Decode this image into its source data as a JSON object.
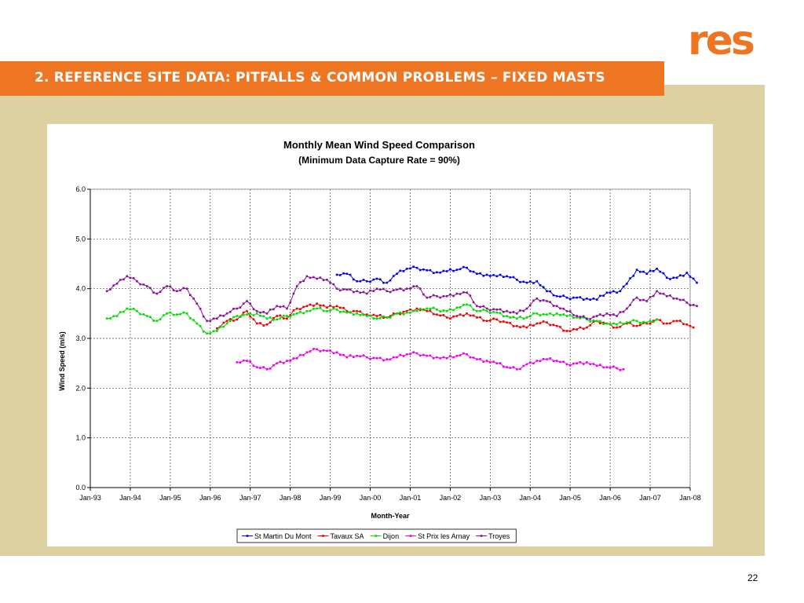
{
  "logo": {
    "text": "res",
    "color": "#ee7623"
  },
  "header": {
    "title": "2.   REFERENCE SITE DATA: PITFALLS & COMMON PROBLEMS – FIXED MASTS",
    "accent": "#ee7623"
  },
  "page": {
    "number": "22",
    "background": "#ddd0a1"
  },
  "chart_data": {
    "type": "line",
    "title": "Monthly Mean Wind Speed Comparison",
    "subtitle": "(Minimum Data Capture Rate = 90%)",
    "xlabel": "Month-Year",
    "ylabel": "Wind Speed (m/s)",
    "ylim": [
      0,
      6
    ],
    "yticks": [
      "0.0",
      "1.0",
      "2.0",
      "3.0",
      "4.0",
      "5.0",
      "6.0"
    ],
    "xticks": [
      "Jan-93",
      "Jan-94",
      "Jan-95",
      "Jan-96",
      "Jan-97",
      "Jan-98",
      "Jan-99",
      "Jan-00",
      "Jan-01",
      "Jan-02",
      "Jan-03",
      "Jan-04",
      "Jan-05",
      "Jan-06",
      "Jan-07",
      "Jan-08"
    ],
    "grid": true,
    "legend_position": "bottom",
    "series": [
      {
        "name": "St Martin Du Mont",
        "color": "#0000ee",
        "points": [
          [
            "1999-03",
            4.28
          ],
          [
            "1999-06",
            4.3
          ],
          [
            "1999-09",
            4.15
          ],
          [
            "1999-12",
            4.15
          ],
          [
            "2000-03",
            4.2
          ],
          [
            "2000-06",
            4.12
          ],
          [
            "2000-09",
            4.3
          ],
          [
            "2000-12",
            4.4
          ],
          [
            "2001-03",
            4.42
          ],
          [
            "2001-06",
            4.37
          ],
          [
            "2001-09",
            4.33
          ],
          [
            "2001-12",
            4.35
          ],
          [
            "2002-03",
            4.38
          ],
          [
            "2002-06",
            4.42
          ],
          [
            "2002-09",
            4.3
          ],
          [
            "2002-12",
            4.28
          ],
          [
            "2003-03",
            4.25
          ],
          [
            "2003-06",
            4.25
          ],
          [
            "2003-09",
            4.18
          ],
          [
            "2003-12",
            4.12
          ],
          [
            "2004-03",
            4.15
          ],
          [
            "2004-06",
            3.95
          ],
          [
            "2004-09",
            3.85
          ],
          [
            "2004-12",
            3.82
          ],
          [
            "2005-03",
            3.82
          ],
          [
            "2005-06",
            3.8
          ],
          [
            "2005-09",
            3.78
          ],
          [
            "2005-12",
            3.92
          ],
          [
            "2006-03",
            3.92
          ],
          [
            "2006-06",
            4.1
          ],
          [
            "2006-09",
            4.38
          ],
          [
            "2006-12",
            4.3
          ],
          [
            "2007-03",
            4.4
          ],
          [
            "2007-06",
            4.22
          ],
          [
            "2007-09",
            4.22
          ],
          [
            "2007-12",
            4.32
          ],
          [
            "2008-03",
            4.12
          ]
        ]
      },
      {
        "name": "Tavaux SA",
        "color": "#ee0000",
        "points": [
          [
            "1996-03",
            3.2
          ],
          [
            "1996-06",
            3.35
          ],
          [
            "1996-09",
            3.38
          ],
          [
            "1996-12",
            3.55
          ],
          [
            "1997-03",
            3.3
          ],
          [
            "1997-06",
            3.28
          ],
          [
            "1997-09",
            3.45
          ],
          [
            "1997-12",
            3.4
          ],
          [
            "1998-03",
            3.6
          ],
          [
            "1998-06",
            3.65
          ],
          [
            "1998-09",
            3.7
          ],
          [
            "1998-12",
            3.62
          ],
          [
            "1999-03",
            3.65
          ],
          [
            "1999-06",
            3.55
          ],
          [
            "1999-09",
            3.55
          ],
          [
            "1999-12",
            3.48
          ],
          [
            "2000-03",
            3.45
          ],
          [
            "2000-06",
            3.42
          ],
          [
            "2000-09",
            3.5
          ],
          [
            "2000-12",
            3.55
          ],
          [
            "2001-03",
            3.6
          ],
          [
            "2001-06",
            3.55
          ],
          [
            "2001-09",
            3.48
          ],
          [
            "2001-12",
            3.42
          ],
          [
            "2002-03",
            3.45
          ],
          [
            "2002-06",
            3.5
          ],
          [
            "2002-09",
            3.42
          ],
          [
            "2002-12",
            3.35
          ],
          [
            "2003-03",
            3.38
          ],
          [
            "2003-06",
            3.32
          ],
          [
            "2003-09",
            3.25
          ],
          [
            "2003-12",
            3.22
          ],
          [
            "2004-03",
            3.3
          ],
          [
            "2004-06",
            3.32
          ],
          [
            "2004-09",
            3.25
          ],
          [
            "2004-12",
            3.15
          ],
          [
            "2005-03",
            3.18
          ],
          [
            "2005-06",
            3.22
          ],
          [
            "2005-09",
            3.35
          ],
          [
            "2005-12",
            3.3
          ],
          [
            "2006-03",
            3.22
          ],
          [
            "2006-06",
            3.3
          ],
          [
            "2006-09",
            3.25
          ],
          [
            "2006-12",
            3.3
          ],
          [
            "2007-03",
            3.38
          ],
          [
            "2007-06",
            3.3
          ],
          [
            "2007-09",
            3.35
          ],
          [
            "2007-12",
            3.28
          ],
          [
            "2008-02",
            3.22
          ]
        ]
      },
      {
        "name": "Dijon",
        "color": "#00dd00",
        "points": [
          [
            "1993-06",
            3.4
          ],
          [
            "1993-09",
            3.45
          ],
          [
            "1993-12",
            3.6
          ],
          [
            "1994-03",
            3.55
          ],
          [
            "1994-06",
            3.45
          ],
          [
            "1994-09",
            3.35
          ],
          [
            "1994-12",
            3.5
          ],
          [
            "1995-03",
            3.48
          ],
          [
            "1995-06",
            3.5
          ],
          [
            "1995-09",
            3.3
          ],
          [
            "1995-12",
            3.1
          ],
          [
            "1996-03",
            3.15
          ],
          [
            "1996-06",
            3.3
          ],
          [
            "1996-09",
            3.45
          ],
          [
            "1996-12",
            3.48
          ],
          [
            "1997-03",
            3.5
          ],
          [
            "1997-06",
            3.4
          ],
          [
            "1997-09",
            3.38
          ],
          [
            "1997-12",
            3.45
          ],
          [
            "1998-03",
            3.5
          ],
          [
            "1998-06",
            3.55
          ],
          [
            "1998-09",
            3.6
          ],
          [
            "1998-12",
            3.55
          ],
          [
            "1999-03",
            3.58
          ],
          [
            "1999-06",
            3.52
          ],
          [
            "1999-09",
            3.5
          ],
          [
            "1999-12",
            3.45
          ],
          [
            "2000-03",
            3.4
          ],
          [
            "2000-06",
            3.42
          ],
          [
            "2000-09",
            3.5
          ],
          [
            "2000-12",
            3.52
          ],
          [
            "2001-03",
            3.55
          ],
          [
            "2001-06",
            3.6
          ],
          [
            "2001-09",
            3.58
          ],
          [
            "2001-12",
            3.55
          ],
          [
            "2002-03",
            3.62
          ],
          [
            "2002-06",
            3.68
          ],
          [
            "2002-09",
            3.55
          ],
          [
            "2002-12",
            3.55
          ],
          [
            "2003-03",
            3.52
          ],
          [
            "2003-06",
            3.45
          ],
          [
            "2003-09",
            3.4
          ],
          [
            "2003-12",
            3.42
          ],
          [
            "2004-03",
            3.5
          ],
          [
            "2004-06",
            3.48
          ],
          [
            "2004-09",
            3.5
          ],
          [
            "2004-12",
            3.45
          ],
          [
            "2005-03",
            3.42
          ],
          [
            "2005-06",
            3.38
          ],
          [
            "2005-09",
            3.35
          ],
          [
            "2005-12",
            3.3
          ],
          [
            "2006-03",
            3.28
          ],
          [
            "2006-06",
            3.32
          ],
          [
            "2006-09",
            3.35
          ],
          [
            "2006-12",
            3.32
          ],
          [
            "2007-03",
            3.38
          ]
        ]
      },
      {
        "name": "St Prix les Arnay",
        "color": "#ee00ee",
        "points": [
          [
            "1996-09",
            2.52
          ],
          [
            "1996-12",
            2.55
          ],
          [
            "1997-03",
            2.42
          ],
          [
            "1997-06",
            2.38
          ],
          [
            "1997-09",
            2.5
          ],
          [
            "1997-12",
            2.55
          ],
          [
            "1998-03",
            2.6
          ],
          [
            "1998-06",
            2.72
          ],
          [
            "1998-09",
            2.78
          ],
          [
            "1998-12",
            2.75
          ],
          [
            "1999-03",
            2.72
          ],
          [
            "1999-06",
            2.62
          ],
          [
            "1999-09",
            2.65
          ],
          [
            "1999-12",
            2.62
          ],
          [
            "2000-03",
            2.6
          ],
          [
            "2000-06",
            2.58
          ],
          [
            "2000-09",
            2.62
          ],
          [
            "2000-12",
            2.68
          ],
          [
            "2001-03",
            2.7
          ],
          [
            "2001-06",
            2.65
          ],
          [
            "2001-09",
            2.62
          ],
          [
            "2001-12",
            2.6
          ],
          [
            "2002-03",
            2.65
          ],
          [
            "2002-06",
            2.68
          ],
          [
            "2002-09",
            2.58
          ],
          [
            "2002-12",
            2.55
          ],
          [
            "2003-03",
            2.5
          ],
          [
            "2003-06",
            2.42
          ],
          [
            "2003-09",
            2.38
          ],
          [
            "2003-12",
            2.48
          ],
          [
            "2004-03",
            2.55
          ],
          [
            "2004-06",
            2.58
          ],
          [
            "2004-09",
            2.55
          ],
          [
            "2004-12",
            2.48
          ],
          [
            "2005-03",
            2.5
          ],
          [
            "2005-06",
            2.52
          ],
          [
            "2005-09",
            2.45
          ],
          [
            "2005-12",
            2.42
          ],
          [
            "2006-03",
            2.4
          ],
          [
            "2006-05",
            2.38
          ]
        ]
      },
      {
        "name": "Troyes",
        "color": "#881199",
        "points": [
          [
            "1993-06",
            3.95
          ],
          [
            "1993-09",
            4.1
          ],
          [
            "1993-12",
            4.25
          ],
          [
            "1994-03",
            4.15
          ],
          [
            "1994-06",
            4.05
          ],
          [
            "1994-09",
            3.9
          ],
          [
            "1994-12",
            4.05
          ],
          [
            "1995-03",
            3.95
          ],
          [
            "1995-06",
            4.0
          ],
          [
            "1995-09",
            3.7
          ],
          [
            "1995-12",
            3.35
          ],
          [
            "1996-03",
            3.4
          ],
          [
            "1996-06",
            3.5
          ],
          [
            "1996-09",
            3.6
          ],
          [
            "1996-12",
            3.75
          ],
          [
            "1997-03",
            3.55
          ],
          [
            "1997-06",
            3.5
          ],
          [
            "1997-09",
            3.65
          ],
          [
            "1997-12",
            3.6
          ],
          [
            "1998-03",
            4.05
          ],
          [
            "1998-06",
            4.25
          ],
          [
            "1998-09",
            4.2
          ],
          [
            "1998-12",
            4.18
          ],
          [
            "1999-03",
            4.0
          ],
          [
            "1999-06",
            3.98
          ],
          [
            "1999-09",
            3.95
          ],
          [
            "1999-12",
            3.9
          ],
          [
            "2000-03",
            4.0
          ],
          [
            "2000-06",
            3.95
          ],
          [
            "2000-09",
            3.98
          ],
          [
            "2000-12",
            4.0
          ],
          [
            "2001-03",
            4.05
          ],
          [
            "2001-06",
            3.82
          ],
          [
            "2001-09",
            3.85
          ],
          [
            "2001-12",
            3.85
          ],
          [
            "2002-03",
            3.9
          ],
          [
            "2002-06",
            3.92
          ],
          [
            "2002-09",
            3.65
          ],
          [
            "2002-12",
            3.6
          ],
          [
            "2003-03",
            3.58
          ],
          [
            "2003-06",
            3.55
          ],
          [
            "2003-09",
            3.5
          ],
          [
            "2003-12",
            3.6
          ],
          [
            "2004-03",
            3.8
          ],
          [
            "2004-06",
            3.75
          ],
          [
            "2004-09",
            3.65
          ],
          [
            "2004-12",
            3.55
          ],
          [
            "2005-03",
            3.45
          ],
          [
            "2005-06",
            3.4
          ],
          [
            "2005-09",
            3.45
          ],
          [
            "2005-12",
            3.5
          ],
          [
            "2006-03",
            3.45
          ],
          [
            "2006-06",
            3.6
          ],
          [
            "2006-09",
            3.82
          ],
          [
            "2006-12",
            3.75
          ],
          [
            "2007-03",
            3.95
          ],
          [
            "2007-06",
            3.85
          ],
          [
            "2007-09",
            3.8
          ],
          [
            "2007-12",
            3.72
          ],
          [
            "2008-03",
            3.65
          ]
        ]
      }
    ]
  }
}
